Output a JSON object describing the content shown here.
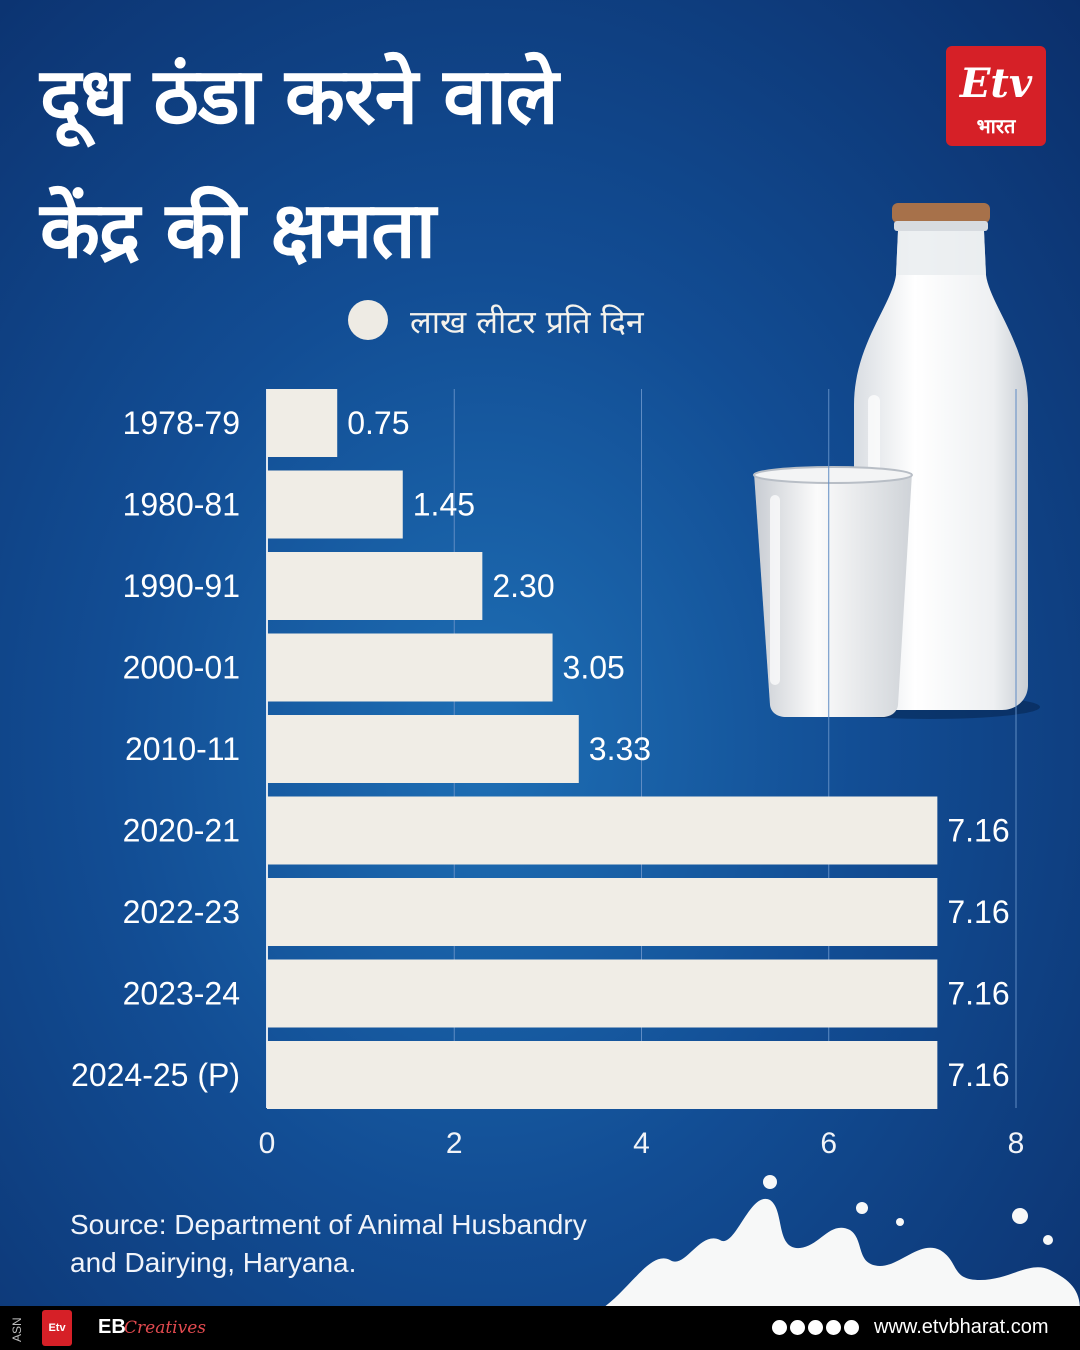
{
  "header": {
    "title_line1": "दूध ठंडा करने वाले",
    "title_line2": "केंद्र की क्षमता",
    "logo_mark": "Etv",
    "logo_word": "भारत"
  },
  "legend": {
    "label": "लाख लीटर प्रति दिन"
  },
  "chart_data": {
    "type": "bar",
    "orientation": "horizontal",
    "categories": [
      "1978-79",
      "1980-81",
      "1990-91",
      "2000-01",
      "2010-11",
      "2020-21",
      "2022-23",
      "2023-24",
      "2024-25 (P)"
    ],
    "values": [
      0.75,
      1.45,
      2.3,
      3.05,
      3.33,
      7.16,
      7.16,
      7.16,
      7.16
    ],
    "value_labels": [
      "0.75",
      "1.45",
      "2.30",
      "3.05",
      "3.33",
      "7.16",
      "7.16",
      "7.16",
      "7.16"
    ],
    "x_ticks": [
      "0",
      "2",
      "4",
      "6",
      "8"
    ],
    "xlim": [
      0,
      8
    ],
    "grid": true,
    "bar_color": "#f0ede6"
  },
  "source": {
    "text": "Source: Department of Animal Husbandry and Dairying, Haryana."
  },
  "footer": {
    "asn": "ASN",
    "logo_mark": "Etv",
    "eb": "EB",
    "eb_script": "Creatives",
    "url": "www.etvbharat.com"
  },
  "colors": {
    "background_top": "#0b2f6b",
    "background_center": "#1e6fb5",
    "accent_red": "#d62027"
  }
}
